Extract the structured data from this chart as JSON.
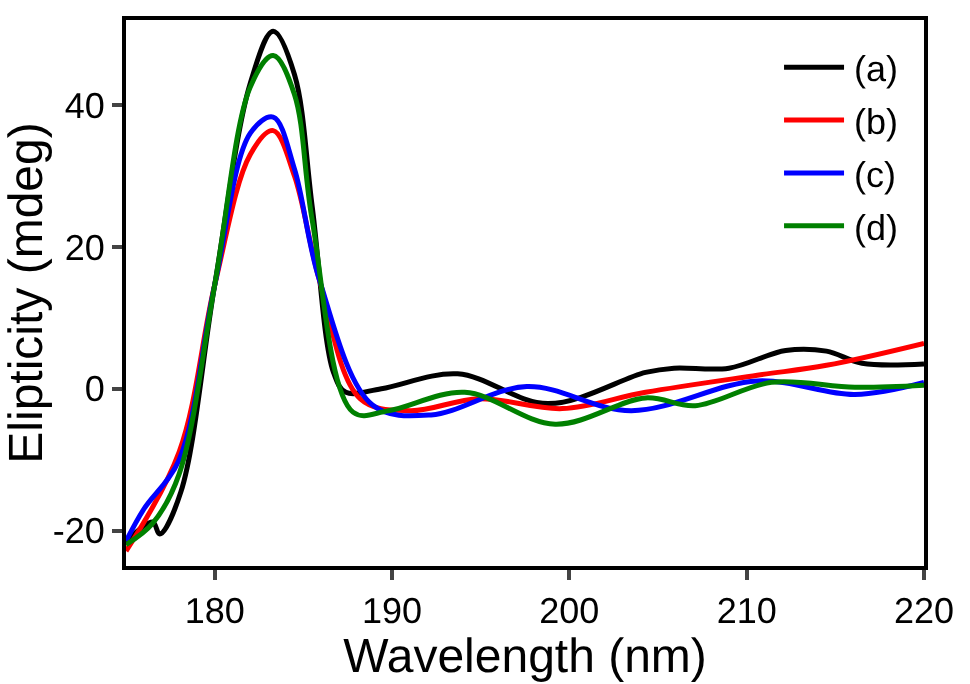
{
  "chart_data": {
    "type": "line",
    "xlabel": "Wavelength (nm)",
    "ylabel": "Elipticity (mdeg)",
    "xlim": [
      175,
      220
    ],
    "ylim": [
      -25,
      52
    ],
    "xticks": [
      180,
      190,
      200,
      210,
      220
    ],
    "yticks": [
      -20,
      0,
      20,
      40
    ],
    "legend": "top right",
    "series": [
      {
        "name": "(a)",
        "color": "#000000",
        "x": [
          175,
          176.5,
          176.9,
          178.1,
          180,
          182,
          183.3,
          184.5,
          185.5,
          186.7,
          187.4,
          189.4,
          193.7,
          198.8,
          204.3,
          205.9,
          209,
          212.2,
          214.5,
          216.5,
          220
        ],
        "values": [
          -21.6,
          -18.8,
          -20.5,
          -14.5,
          14.6,
          43,
          50.4,
          44.3,
          25.7,
          2.3,
          -0.5,
          0,
          2.1,
          -2.1,
          2.3,
          2.9,
          2.9,
          5.4,
          5.3,
          3.6,
          3.5
        ]
      },
      {
        "name": "(b)",
        "color": "#ff0000",
        "x": [
          175,
          178,
          180,
          182,
          183.3,
          184.5,
          185.9,
          188.2,
          191,
          194.9,
          199.6,
          204.3,
          210.6,
          214.5,
          220
        ],
        "values": [
          -22.9,
          -8.9,
          14.6,
          33,
          36.4,
          30,
          15.4,
          -1.4,
          -3.1,
          -1.4,
          -2.8,
          -0.5,
          1.9,
          3.3,
          6.4
        ]
      },
      {
        "name": "(c)",
        "color": "#0000ff",
        "x": [
          175,
          176,
          178,
          180,
          182,
          183.3,
          184.5,
          185.9,
          188.9,
          192.2,
          197.6,
          203.5,
          210.6,
          216.1,
          220
        ],
        "values": [
          -21.5,
          -17,
          -10,
          14.6,
          36,
          38.3,
          31,
          15.4,
          -2.3,
          -3.7,
          0.3,
          -3.1,
          1.1,
          -0.8,
          0.9
        ]
      },
      {
        "name": "(d)",
        "color": "#008000",
        "x": [
          175,
          176.5,
          178,
          180,
          182,
          183.3,
          184.5,
          185.5,
          187.8,
          189.8,
          194.1,
          199.2,
          204.3,
          207.1,
          211.4,
          216.1,
          220
        ],
        "values": [
          -22,
          -19,
          -12,
          14.6,
          42.5,
          47,
          41.5,
          23.8,
          -3.3,
          -3.1,
          -0.5,
          -5,
          -1.3,
          -2.4,
          0.9,
          0.2,
          0.5
        ]
      }
    ]
  }
}
